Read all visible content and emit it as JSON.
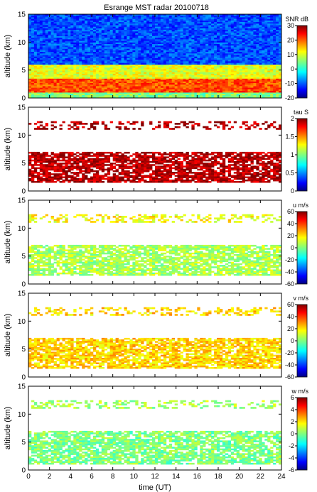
{
  "chart_data": {
    "type": "heatmap",
    "title": "Esrange MST radar 20100718",
    "xlabel": "time (UT)",
    "x_ticks": [
      "0",
      "2",
      "4",
      "6",
      "8",
      "10",
      "12",
      "14",
      "16",
      "18",
      "20",
      "22",
      "24"
    ],
    "xlim": [
      0,
      24
    ],
    "panels": [
      {
        "id": "snr",
        "ylabel": "altitude (km)",
        "ylim": [
          0,
          15
        ],
        "y_ticks": [
          "0",
          "5",
          "10",
          "15"
        ],
        "colorbar": {
          "label": "SNR dB",
          "range": [
            -20,
            30
          ],
          "ticks": [
            "30",
            "20",
            "10",
            "0",
            "-10",
            "-20"
          ]
        },
        "approx_layers": [
          {
            "alt_from": 0,
            "alt_to": 1,
            "snr_db": 5
          },
          {
            "alt_from": 1,
            "alt_to": 3.5,
            "snr_db": 20
          },
          {
            "alt_from": 3.5,
            "alt_to": 6,
            "snr_db": 10
          },
          {
            "alt_from": 6,
            "alt_to": 15,
            "snr_db": -10
          }
        ]
      },
      {
        "id": "tau",
        "ylabel": "altitude (km)",
        "ylim": [
          0,
          15
        ],
        "y_ticks": [
          "0",
          "5",
          "10",
          "15"
        ],
        "colorbar": {
          "label": "tau S",
          "range": [
            0,
            2
          ],
          "ticks": [
            "2",
            "1.5",
            "1",
            "0.5",
            "0"
          ]
        },
        "approx_layers": [
          {
            "alt_from": 1.5,
            "alt_to": 7,
            "tau_s": 1.9
          },
          {
            "alt_from": 11,
            "alt_to": 12.5,
            "tau_s": 1.9
          }
        ]
      },
      {
        "id": "u",
        "ylabel": "altitude (km)",
        "ylim": [
          0,
          15
        ],
        "y_ticks": [
          "0",
          "5",
          "10",
          "15"
        ],
        "colorbar": {
          "label": "u m/s",
          "range": [
            -60,
            60
          ],
          "ticks": [
            "60",
            "40",
            "20",
            "0",
            "-20",
            "-40",
            "-60"
          ]
        },
        "approx_layers": [
          {
            "alt_from": 1.5,
            "alt_to": 7,
            "value": 5
          },
          {
            "alt_from": 11,
            "alt_to": 12.5,
            "value": 15
          }
        ]
      },
      {
        "id": "v",
        "ylabel": "altitude (km)",
        "ylim": [
          0,
          15
        ],
        "y_ticks": [
          "0",
          "5",
          "10",
          "15"
        ],
        "colorbar": {
          "label": "v m/s",
          "range": [
            -60,
            60
          ],
          "ticks": [
            "60",
            "40",
            "20",
            "0",
            "-20",
            "-40",
            "-60"
          ]
        },
        "approx_layers": [
          {
            "alt_from": 1.5,
            "alt_to": 7,
            "value": 20
          },
          {
            "alt_from": 11,
            "alt_to": 12.5,
            "value": 20
          }
        ]
      },
      {
        "id": "w",
        "ylabel": "altitude (km)",
        "ylim": [
          0,
          15
        ],
        "y_ticks": [
          "0",
          "5",
          "10",
          "15"
        ],
        "colorbar": {
          "label": "w m/s",
          "range": [
            -6,
            6
          ],
          "ticks": [
            "6",
            "4",
            "2",
            "0",
            "-2",
            "-4",
            "-6"
          ]
        },
        "approx_layers": [
          {
            "alt_from": 1,
            "alt_to": 7,
            "value": 0
          },
          {
            "alt_from": 11,
            "alt_to": 12.5,
            "value": 0.5
          }
        ]
      }
    ]
  }
}
